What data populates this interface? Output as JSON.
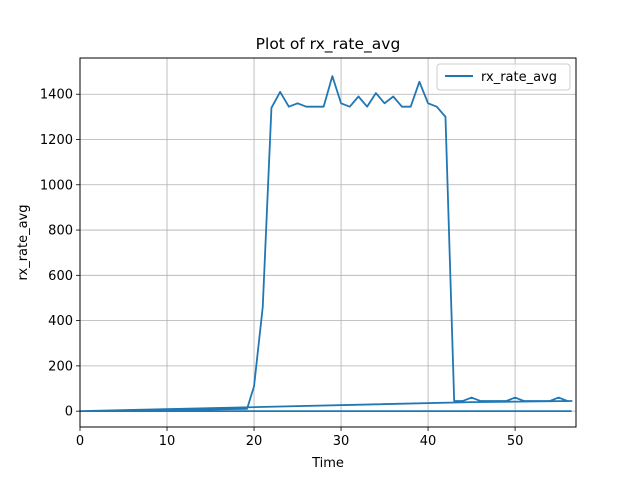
{
  "chart_data": {
    "type": "line",
    "title": "Plot of rx_rate_avg",
    "xlabel": "Time",
    "ylabel": "rx_rate_avg",
    "xlim": [
      0,
      57
    ],
    "ylim": [
      -70,
      1560
    ],
    "xticks": [
      0,
      10,
      20,
      30,
      40,
      50
    ],
    "yticks": [
      0,
      200,
      400,
      600,
      800,
      1000,
      1200,
      1400
    ],
    "grid": true,
    "legend_position": "top-right",
    "series": [
      {
        "name": "rx_rate_avg",
        "color": "#1f77b4",
        "x": [
          0,
          19.2,
          20,
          21,
          22,
          23,
          24,
          25,
          26,
          27,
          28,
          29,
          30,
          31,
          32,
          33,
          34,
          35,
          36,
          37,
          38,
          39,
          40,
          41,
          42,
          43,
          44,
          45,
          46,
          47,
          48,
          49,
          50,
          51,
          52,
          53,
          54,
          55,
          56,
          56.5,
          45,
          0,
          19,
          56.5
        ],
        "y": [
          0,
          10,
          110,
          460,
          1340,
          1410,
          1345,
          1360,
          1345,
          1345,
          1345,
          1480,
          1360,
          1345,
          1390,
          1345,
          1405,
          1360,
          1390,
          1345,
          1345,
          1455,
          1360,
          1345,
          1300,
          45,
          45,
          60,
          45,
          45,
          45,
          45,
          60,
          45,
          45,
          45,
          45,
          60,
          45,
          45,
          40,
          0,
          0,
          0
        ]
      }
    ]
  }
}
